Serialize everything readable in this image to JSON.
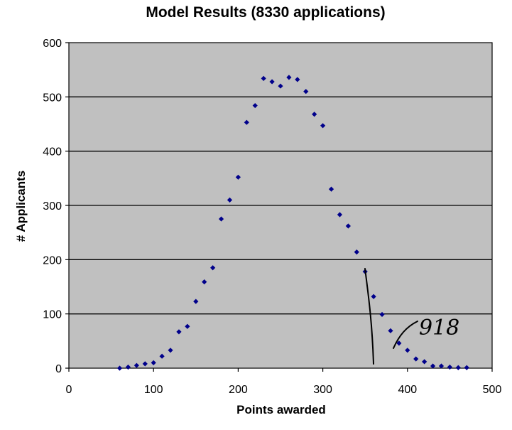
{
  "chart_data": {
    "type": "scatter",
    "title": "Model Results (8330 applications)",
    "xlabel": "Points awarded",
    "ylabel": "# Applicants",
    "xlim": [
      0,
      500
    ],
    "ylim": [
      0,
      600
    ],
    "x_ticks": [
      0,
      100,
      200,
      300,
      400,
      500
    ],
    "y_ticks": [
      0,
      100,
      200,
      300,
      400,
      500,
      600
    ],
    "grid": "horizontal",
    "plot_background": "#c0c0c0",
    "marker_color": "#00008b",
    "series": [
      {
        "x": [
          60,
          70,
          80,
          90,
          100,
          110,
          120,
          130,
          140,
          150,
          160,
          170,
          180,
          190,
          200,
          210,
          220,
          230,
          240,
          250,
          260,
          270,
          280,
          290,
          300,
          310,
          320,
          330,
          340,
          350,
          360,
          370,
          380,
          390,
          400,
          410,
          420,
          430,
          440,
          450,
          460,
          470
        ],
        "y": [
          0,
          2,
          5,
          8,
          10,
          22,
          33,
          67,
          77,
          123,
          159,
          185,
          275,
          310,
          352,
          453,
          484,
          534,
          528,
          520,
          536,
          532,
          510,
          468,
          447,
          330,
          283,
          262,
          214,
          178,
          132,
          99,
          69,
          46,
          33,
          17,
          12,
          4,
          4,
          2,
          1,
          1
        ]
      }
    ],
    "annotation": {
      "text": "918"
    }
  }
}
